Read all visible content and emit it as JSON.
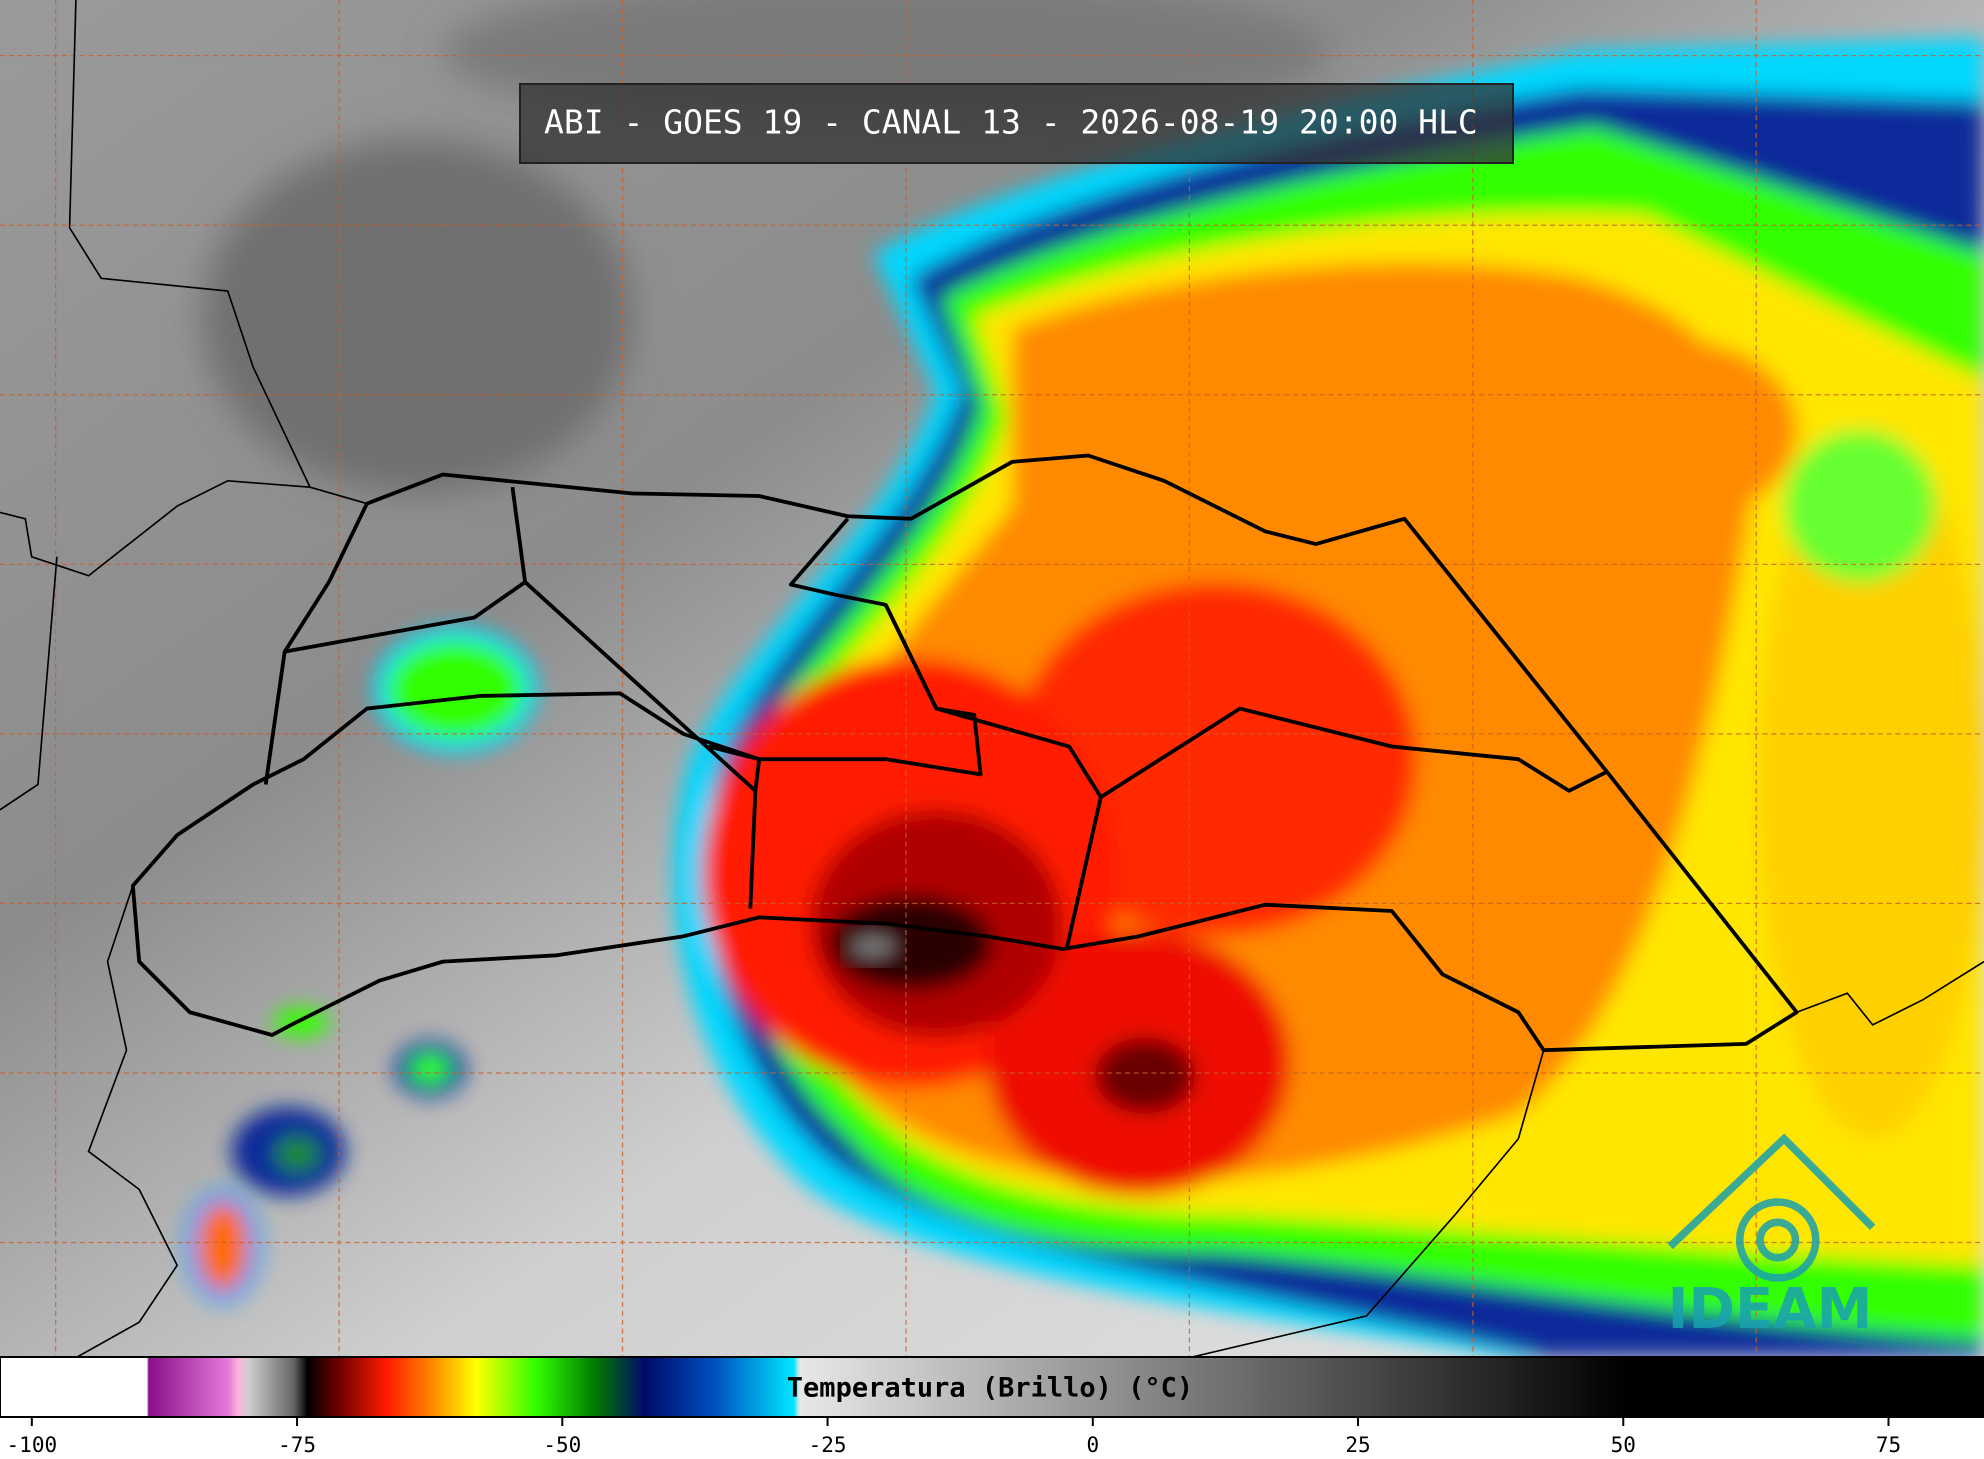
{
  "header": {
    "title": "ABI - GOES 19 - CANAL 13 - 2026-08-19 20:00 HLC"
  },
  "colorbar": {
    "label": "Temperatura (Brillo) (°C)",
    "lim": [
      -103,
      84
    ],
    "ticks": [
      -100,
      -75,
      -50,
      -25,
      0,
      25,
      50,
      75
    ]
  },
  "logo": {
    "text": "IDEAM"
  }
}
